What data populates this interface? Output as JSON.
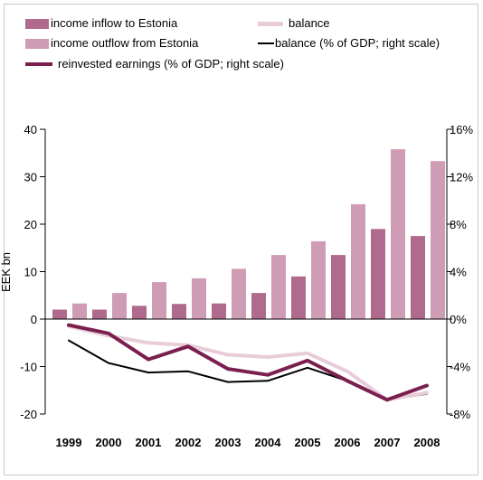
{
  "chart_data": {
    "type": "bar+line",
    "categories": [
      "1999",
      "2000",
      "2001",
      "2002",
      "2003",
      "2004",
      "2005",
      "2006",
      "2007",
      "2008"
    ],
    "ylabel": "EEK bn",
    "ylim": [
      -20,
      40
    ],
    "y_ticks": [
      "40",
      "30",
      "20",
      "10",
      "0",
      "-10",
      "-20"
    ],
    "y2lim": [
      -8,
      16
    ],
    "y2_ticks": [
      "16%",
      "12%",
      "8%",
      "4%",
      "0%",
      "-4%",
      "-8%"
    ],
    "legend_position": "top",
    "grid": false,
    "series": [
      {
        "name": "income inflow to Estonia",
        "kind": "bar",
        "axis": "left",
        "color": "#b06a8e",
        "values": [
          2.0,
          2.0,
          2.8,
          3.2,
          3.3,
          5.5,
          9.0,
          13.5,
          19.0,
          17.5
        ]
      },
      {
        "name": "income outflow from Estonia",
        "kind": "bar",
        "axis": "left",
        "color": "#cf9cb6",
        "values": [
          3.3,
          5.5,
          7.8,
          8.6,
          10.6,
          13.5,
          16.4,
          24.2,
          35.8,
          33.3
        ]
      },
      {
        "name": "balance",
        "kind": "line",
        "axis": "left",
        "color": "#e8cdd9",
        "values": [
          -1.5,
          -3.5,
          -5.0,
          -5.5,
          -7.5,
          -8.0,
          -7.2,
          -11.0,
          -17.0,
          -15.5
        ]
      },
      {
        "name": "balance (% of GDP; right scale)",
        "kind": "line",
        "axis": "right",
        "color": "#000000",
        "values": [
          -1.8,
          -3.7,
          -4.5,
          -4.4,
          -5.3,
          -5.2,
          -4.1,
          -5.2,
          -6.8,
          -6.3
        ]
      },
      {
        "name": "reinvested earnings (% of GDP; right scale)",
        "kind": "line",
        "axis": "right",
        "color": "#7a1f4e",
        "values": [
          -0.5,
          -1.2,
          -3.4,
          -2.3,
          -4.2,
          -4.7,
          -3.5,
          -5.2,
          -6.8,
          -5.6
        ]
      }
    ]
  },
  "legend": [
    {
      "label": "income inflow to Estonia"
    },
    {
      "label": "balance"
    },
    {
      "label": "income outflow from Estonia"
    },
    {
      "label": "balance (% of GDP; right scale)"
    },
    {
      "label": "reinvested earnings (% of GDP; right scale)"
    }
  ]
}
